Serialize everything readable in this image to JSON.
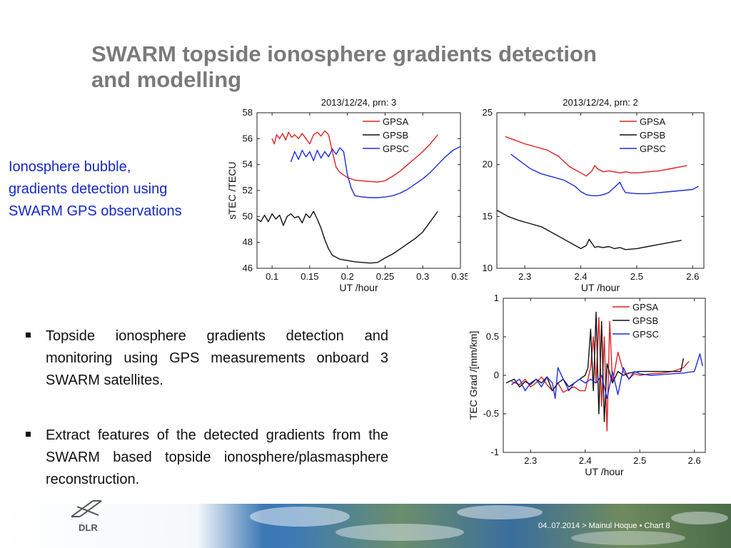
{
  "slide": {
    "title_line1": "SWARM topside ionosphere gradients detection",
    "title_line2": "and modelling",
    "side_lines": [
      "Ionosphere  bubble,",
      "gradients detection using",
      "SWARM GPS observations"
    ],
    "bullets": [
      "Topside ionosphere gradients detection and monitoring using GPS measurements onboard 3 SWARM satellites.",
      "Extract features of the detected gradients from the SWARM based topside ionosphere/plasmasphere reconstruction."
    ],
    "logo_text": "DLR",
    "footer": "04..07.2014 >  Mainul Hoque •  Chart 8"
  },
  "colors": {
    "GPSA": "#e02020",
    "GPSB": "#111111",
    "GPSC": "#1e2de0",
    "title": "#7a7a7a",
    "side": "#1528c8"
  },
  "chart_data": [
    {
      "type": "line",
      "title": "2013/12/24, prn: 3",
      "xlabel": "UT /hour",
      "ylabel": "sTEC /TECU",
      "xlim": [
        0.08,
        0.35
      ],
      "ylim": [
        46,
        58
      ],
      "xticks": [
        0.1,
        0.15,
        0.2,
        0.25,
        0.3,
        0.35
      ],
      "xtick_labels": [
        "0.1",
        "0.15",
        "0.2",
        "0.25",
        "0.3",
        "0.35"
      ],
      "yticks": [
        46,
        48,
        50,
        52,
        54,
        56,
        58
      ],
      "ytick_labels": [
        "46",
        "48",
        "50",
        "52",
        "54",
        "56",
        "58"
      ],
      "legend": "top-right",
      "series": [
        {
          "name": "GPSA",
          "x": [
            0.1,
            0.103,
            0.106,
            0.11,
            0.114,
            0.118,
            0.122,
            0.126,
            0.13,
            0.135,
            0.14,
            0.145,
            0.15,
            0.155,
            0.16,
            0.165,
            0.17,
            0.175,
            0.18,
            0.185,
            0.19,
            0.195,
            0.2,
            0.21,
            0.22,
            0.23,
            0.24,
            0.25,
            0.26,
            0.27,
            0.28,
            0.29,
            0.3,
            0.31,
            0.32
          ],
          "y": [
            56.0,
            55.6,
            56.3,
            56.0,
            56.4,
            55.9,
            56.5,
            56.1,
            56.3,
            56.0,
            56.4,
            56.0,
            55.6,
            56.3,
            56.5,
            56.2,
            56.6,
            56.3,
            55.0,
            53.8,
            53.4,
            53.2,
            53.0,
            52.8,
            52.75,
            52.7,
            52.65,
            52.75,
            53.1,
            53.5,
            54.0,
            54.5,
            55.0,
            55.6,
            56.3
          ]
        },
        {
          "name": "GPSB",
          "x": [
            0.08,
            0.085,
            0.09,
            0.095,
            0.1,
            0.105,
            0.11,
            0.115,
            0.12,
            0.125,
            0.13,
            0.135,
            0.14,
            0.145,
            0.15,
            0.155,
            0.16,
            0.165,
            0.17,
            0.175,
            0.18,
            0.19,
            0.2,
            0.21,
            0.22,
            0.23,
            0.24,
            0.25,
            0.26,
            0.27,
            0.28,
            0.29,
            0.3,
            0.31,
            0.32
          ],
          "y": [
            49.8,
            49.6,
            50.1,
            49.6,
            50.2,
            49.8,
            50.1,
            49.3,
            50.0,
            50.2,
            49.9,
            50.0,
            49.5,
            50.2,
            49.9,
            50.4,
            49.8,
            49.1,
            48.2,
            47.5,
            47.0,
            46.7,
            46.6,
            46.5,
            46.45,
            46.4,
            46.45,
            46.8,
            47.1,
            47.5,
            47.9,
            48.3,
            48.8,
            49.6,
            50.4
          ]
        },
        {
          "name": "GPSC",
          "x": [
            0.125,
            0.13,
            0.135,
            0.14,
            0.145,
            0.15,
            0.155,
            0.16,
            0.165,
            0.17,
            0.175,
            0.18,
            0.185,
            0.19,
            0.195,
            0.2,
            0.205,
            0.21,
            0.22,
            0.23,
            0.24,
            0.25,
            0.26,
            0.27,
            0.28,
            0.29,
            0.3,
            0.31,
            0.32,
            0.33,
            0.34,
            0.35
          ],
          "y": [
            54.2,
            55.0,
            54.4,
            55.1,
            54.6,
            55.0,
            54.3,
            55.1,
            54.5,
            55.0,
            54.6,
            55.2,
            54.8,
            55.3,
            55.0,
            53.2,
            52.2,
            51.6,
            51.5,
            51.45,
            51.45,
            51.5,
            51.6,
            51.8,
            52.1,
            52.5,
            52.9,
            53.4,
            54.0,
            54.6,
            55.1,
            55.4
          ]
        }
      ]
    },
    {
      "type": "line",
      "title": "2013/12/24, prn: 2",
      "xlabel": "UT /hour",
      "ylabel": "",
      "xlim": [
        2.25,
        2.62
      ],
      "ylim": [
        10,
        25
      ],
      "xticks": [
        2.3,
        2.4,
        2.5,
        2.6
      ],
      "xtick_labels": [
        "2.3",
        "2.4",
        "2.5",
        "2.6"
      ],
      "yticks": [
        10,
        15,
        20,
        25
      ],
      "ytick_labels": [
        "10",
        "15",
        "20",
        "25"
      ],
      "legend": "top-right",
      "series": [
        {
          "name": "GPSA",
          "x": [
            2.265,
            2.28,
            2.3,
            2.32,
            2.34,
            2.36,
            2.38,
            2.4,
            2.41,
            2.42,
            2.425,
            2.43,
            2.44,
            2.45,
            2.46,
            2.47,
            2.48,
            2.49,
            2.5,
            2.52,
            2.54,
            2.56,
            2.58,
            2.59
          ],
          "y": [
            22.7,
            22.4,
            22.0,
            21.7,
            21.4,
            20.8,
            19.8,
            19.2,
            18.9,
            19.4,
            19.9,
            19.6,
            19.3,
            19.4,
            19.3,
            19.2,
            19.3,
            19.2,
            19.2,
            19.3,
            19.4,
            19.6,
            19.8,
            19.9
          ]
        },
        {
          "name": "GPSB",
          "x": [
            2.25,
            2.27,
            2.29,
            2.31,
            2.33,
            2.35,
            2.37,
            2.39,
            2.4,
            2.41,
            2.415,
            2.42,
            2.425,
            2.43,
            2.44,
            2.45,
            2.46,
            2.47,
            2.48,
            2.5,
            2.52,
            2.54,
            2.56,
            2.58
          ],
          "y": [
            15.6,
            15.0,
            14.6,
            14.3,
            14.0,
            13.4,
            12.8,
            12.2,
            11.9,
            12.2,
            12.8,
            12.4,
            12.0,
            12.1,
            12.0,
            12.1,
            11.9,
            12.0,
            11.8,
            11.9,
            12.1,
            12.3,
            12.5,
            12.7
          ]
        },
        {
          "name": "GPSC",
          "x": [
            2.275,
            2.29,
            2.31,
            2.33,
            2.35,
            2.37,
            2.39,
            2.4,
            2.41,
            2.42,
            2.43,
            2.44,
            2.45,
            2.46,
            2.47,
            2.475,
            2.48,
            2.5,
            2.52,
            2.54,
            2.56,
            2.58,
            2.6,
            2.61
          ],
          "y": [
            21.0,
            20.4,
            19.6,
            19.1,
            18.8,
            18.5,
            17.9,
            17.4,
            17.1,
            17.0,
            17.0,
            17.1,
            17.3,
            17.8,
            18.3,
            17.7,
            17.3,
            17.2,
            17.2,
            17.3,
            17.4,
            17.5,
            17.6,
            17.9
          ]
        }
      ]
    },
    {
      "type": "line",
      "title": "",
      "xlabel": "UT /hour",
      "ylabel": "TEC Grad /[mm/km]",
      "xlim": [
        2.25,
        2.62
      ],
      "ylim": [
        -1,
        1
      ],
      "xticks": [
        2.3,
        2.4,
        2.5,
        2.6
      ],
      "xtick_labels": [
        "2.3",
        "2.4",
        "2.5",
        "2.6"
      ],
      "yticks": [
        -1,
        -0.5,
        0,
        0.5,
        1
      ],
      "ytick_labels": [
        "-1",
        "-0.5",
        "0",
        "0.5",
        "1"
      ],
      "legend": "top-right",
      "series": [
        {
          "name": "GPSA",
          "x": [
            2.265,
            2.28,
            2.29,
            2.3,
            2.31,
            2.32,
            2.33,
            2.34,
            2.35,
            2.36,
            2.37,
            2.38,
            2.39,
            2.4,
            2.41,
            2.415,
            2.42,
            2.425,
            2.43,
            2.435,
            2.44,
            2.445,
            2.45,
            2.46,
            2.47,
            2.48,
            2.49,
            2.5,
            2.52,
            2.54,
            2.56,
            2.58,
            2.59
          ],
          "y": [
            -0.08,
            -0.12,
            -0.05,
            -0.15,
            -0.1,
            -0.02,
            -0.12,
            -0.2,
            -0.1,
            -0.22,
            -0.18,
            -0.15,
            -0.2,
            -0.2,
            0.1,
            0.5,
            -0.1,
            0.75,
            -0.4,
            0.5,
            -0.72,
            0.7,
            -0.1,
            0.3,
            0.05,
            -0.05,
            0.02,
            0.0,
            0.02,
            0.03,
            0.05,
            0.1,
            0.18
          ]
        },
        {
          "name": "GPSB",
          "x": [
            2.255,
            2.27,
            2.28,
            2.29,
            2.3,
            2.31,
            2.32,
            2.33,
            2.34,
            2.35,
            2.36,
            2.37,
            2.38,
            2.39,
            2.4,
            2.405,
            2.41,
            2.415,
            2.42,
            2.425,
            2.43,
            2.435,
            2.44,
            2.45,
            2.46,
            2.47,
            2.48,
            2.5,
            2.52,
            2.54,
            2.56,
            2.575,
            2.58
          ],
          "y": [
            -0.1,
            -0.05,
            -0.15,
            -0.08,
            -0.12,
            -0.05,
            -0.1,
            -0.02,
            -0.2,
            -0.1,
            -0.05,
            -0.15,
            -0.1,
            -0.05,
            0.0,
            0.1,
            0.6,
            -0.2,
            0.82,
            -0.5,
            0.7,
            -0.6,
            0.15,
            -0.1,
            0.05,
            0.0,
            0.03,
            0.05,
            0.05,
            0.05,
            0.05,
            0.05,
            0.22
          ]
        },
        {
          "name": "GPSC",
          "x": [
            2.265,
            2.28,
            2.29,
            2.3,
            2.31,
            2.32,
            2.33,
            2.34,
            2.345,
            2.35,
            2.36,
            2.37,
            2.38,
            2.39,
            2.4,
            2.41,
            2.42,
            2.43,
            2.44,
            2.45,
            2.46,
            2.47,
            2.48,
            2.49,
            2.5,
            2.52,
            2.54,
            2.56,
            2.58,
            2.6,
            2.61,
            2.615
          ],
          "y": [
            -0.12,
            -0.05,
            -0.2,
            -0.1,
            -0.05,
            -0.15,
            -0.02,
            -0.1,
            -0.3,
            0.1,
            -0.05,
            -0.2,
            -0.1,
            -0.05,
            -0.1,
            -0.05,
            -0.1,
            0.0,
            -0.3,
            0.05,
            -0.25,
            0.1,
            -0.05,
            0.05,
            0.02,
            0.0,
            0.01,
            0.02,
            0.03,
            0.05,
            0.28,
            0.12
          ]
        }
      ]
    }
  ]
}
